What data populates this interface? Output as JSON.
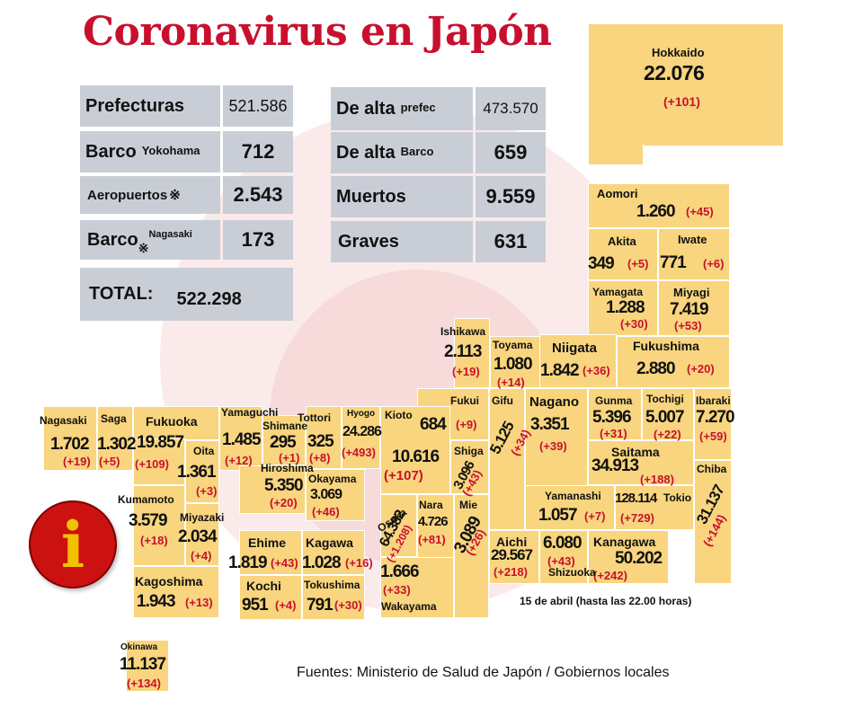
{
  "title": "Coronavirus en Japón",
  "colors": {
    "title": "#c8102e",
    "region": "#f8d57e",
    "stat_box": "#c9ced6",
    "delta": "#c8102e",
    "info_circle": "#cc1111",
    "info_glyph": "#f2c200"
  },
  "stats": {
    "prefecturas": {
      "label": "Prefecturas",
      "value": "521.586"
    },
    "barco_yokohama": {
      "label": "Barco",
      "sub": "Yokohama",
      "value": "712"
    },
    "aeropuertos": {
      "label": "Aeropuertos",
      "mark": "※",
      "value": "2.543"
    },
    "barco_nagasaki": {
      "label": "Barco",
      "mark": "※",
      "sub": "Nagasaki",
      "value": "173"
    },
    "total": {
      "label": "TOTAL:",
      "value": "522.298"
    },
    "de_alta_prefec": {
      "label": "De alta",
      "sub": "prefec",
      "value": "473.570"
    },
    "de_alta_barco": {
      "label": "De alta",
      "sub": "Barco",
      "value": "659"
    },
    "muertos": {
      "label": "Muertos",
      "value": "9.559"
    },
    "graves": {
      "label": "Graves",
      "value": "631"
    }
  },
  "prefectures": {
    "hokkaido": {
      "name": "Hokkaido",
      "value": "22.076",
      "delta": "(+101)"
    },
    "aomori": {
      "name": "Aomori",
      "value": "1.260",
      "delta": "(+45)"
    },
    "akita": {
      "name": "Akita",
      "value": "349",
      "delta": "(+5)"
    },
    "iwate": {
      "name": "Iwate",
      "value": "771",
      "delta": "(+6)"
    },
    "yamagata": {
      "name": "Yamagata",
      "value": "1.288",
      "delta": "(+30)"
    },
    "miyagi": {
      "name": "Miyagi",
      "value": "7.419",
      "delta": "(+53)"
    },
    "ishikawa": {
      "name": "Ishikawa",
      "value": "2.113",
      "delta": "(+19)"
    },
    "toyama": {
      "name": "Toyama",
      "value": "1.080",
      "delta": "(+14)"
    },
    "niigata": {
      "name": "Niigata",
      "value": "1.842",
      "delta": "(+36)"
    },
    "fukushima": {
      "name": "Fukushima",
      "value": "2.880",
      "delta": "(+20)"
    },
    "fukui": {
      "name": "Fukui",
      "value": "684",
      "delta": "(+9)"
    },
    "gifu": {
      "name": "Gifu",
      "value": "5.125",
      "delta": "(+34)"
    },
    "nagano": {
      "name": "Nagano",
      "value": "3.351",
      "delta": "(+39)"
    },
    "gunma": {
      "name": "Gunma",
      "value": "5.396",
      "delta": "(+31)"
    },
    "tochigi": {
      "name": "Tochigi",
      "value": "5.007",
      "delta": "(+22)"
    },
    "ibaraki": {
      "name": "Ibaraki",
      "value": "7.270",
      "delta": "(+59)"
    },
    "saitama": {
      "name": "Saitama",
      "value": "34.913",
      "delta": "(+188)"
    },
    "chiba": {
      "name": "Chiba",
      "value": "31.137",
      "delta": "(+144)"
    },
    "yamanashi": {
      "name": "Yamanashi",
      "value": "1.057",
      "delta": "(+7)"
    },
    "tokio": {
      "name": "Tokio",
      "value": "128.114",
      "delta": "(+729)"
    },
    "kanagawa": {
      "name": "Kanagawa",
      "value": "50.202",
      "delta": "(+242)"
    },
    "shizuoka": {
      "name": "Shizuoka",
      "value": "6.080",
      "delta": "(+43)"
    },
    "aichi": {
      "name": "Aichi",
      "value": "29.567",
      "delta": "(+218)"
    },
    "mie": {
      "name": "Mie",
      "value": "3.089",
      "delta": "(+26)"
    },
    "shiga": {
      "name": "Shiga",
      "value": "3.096",
      "delta": "(+43)"
    },
    "kioto": {
      "name": "Kioto",
      "value": "10.616",
      "delta": "(+107)"
    },
    "hyogo": {
      "name": "Hyogo",
      "value": "24.286",
      "delta": "(+493)"
    },
    "osaka": {
      "name": "Osaka",
      "value": "64.382",
      "delta": "(+1.208)"
    },
    "nara": {
      "name": "Nara",
      "value": "4.726",
      "delta": "(+81)"
    },
    "wakayama": {
      "name": "Wakayama",
      "value": "1.666",
      "delta": "(+33)"
    },
    "tottori": {
      "name": "Tottori",
      "value": "325",
      "delta": "(+8)"
    },
    "shimane": {
      "name": "Shimane",
      "value": "295",
      "delta": "(+1)"
    },
    "okayama": {
      "name": "Okayama",
      "value": "3.069",
      "delta": "(+46)"
    },
    "hiroshima": {
      "name": "Hiroshima",
      "value": "5.350",
      "delta": "(+20)"
    },
    "yamaguchi": {
      "name": "Yamaguchi",
      "value": "1.485",
      "delta": "(+12)"
    },
    "ehime": {
      "name": "Ehime",
      "value": "1.819",
      "delta": "(+43)"
    },
    "kagawa": {
      "name": "Kagawa",
      "value": "1.028",
      "delta": "(+16)"
    },
    "kochi": {
      "name": "Kochi",
      "value": "951",
      "delta": "(+4)"
    },
    "tokushima": {
      "name": "Tokushima",
      "value": "791",
      "delta": "(+30)"
    },
    "nagasaki": {
      "name": "Nagasaki",
      "value": "1.702",
      "delta": "(+19)"
    },
    "saga": {
      "name": "Saga",
      "value": "1.302",
      "delta": "(+5)"
    },
    "fukuoka": {
      "name": "Fukuoka",
      "value": "19.857",
      "delta": "(+109)"
    },
    "oita": {
      "name": "Oita",
      "value": "1.361",
      "delta": "(+3)"
    },
    "kumamoto": {
      "name": "Kumamoto",
      "value": "3.579",
      "delta": "(+18)"
    },
    "miyazaki": {
      "name": "Miyazaki",
      "value": "2.034",
      "delta": "(+4)"
    },
    "kagoshima": {
      "name": "Kagoshima",
      "value": "1.943",
      "delta": "(+13)"
    },
    "okinawa": {
      "name": "Okinawa",
      "value": "11.137",
      "delta": "(+134)"
    }
  },
  "date_note": "15 de abril  (hasta las  22.00 horas)",
  "sources": "Fuentes: Ministerio de Salud de Japón / Gobiernos locales",
  "info_icon": {
    "name": "info-icon",
    "glyph": "i"
  }
}
